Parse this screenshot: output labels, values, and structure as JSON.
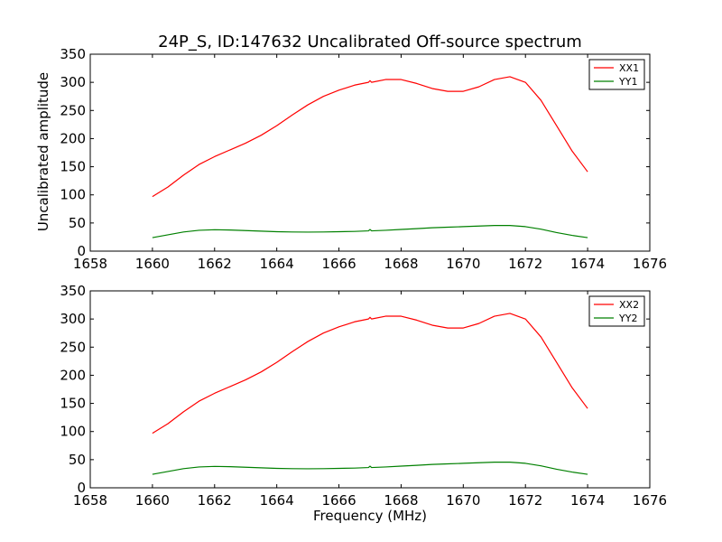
{
  "figure": {
    "title": "24P_S, ID:147632 Uncalibrated Off-source spectrum",
    "xlabel": "Frequency (MHz)",
    "ylabel": "Uncalibrated amplitude"
  },
  "chart_data": [
    {
      "type": "line",
      "xlim": [
        1658,
        1676
      ],
      "ylim": [
        0,
        350
      ],
      "xticks": [
        1658,
        1660,
        1662,
        1664,
        1666,
        1668,
        1670,
        1672,
        1674,
        1676
      ],
      "yticks": [
        0,
        50,
        100,
        150,
        200,
        250,
        300,
        350
      ],
      "legend_position": "top-right",
      "series": [
        {
          "name": "XX1",
          "color": "#ff0000",
          "x": [
            1660.0,
            1660.5,
            1661.0,
            1661.5,
            1662.0,
            1662.5,
            1663.0,
            1663.5,
            1664.0,
            1664.5,
            1665.0,
            1665.5,
            1666.0,
            1666.5,
            1666.95,
            1667.0,
            1667.05,
            1667.5,
            1668.0,
            1668.5,
            1669.0,
            1669.5,
            1670.0,
            1670.5,
            1671.0,
            1671.5,
            1672.0,
            1672.5,
            1673.0,
            1673.5,
            1674.0
          ],
          "values": [
            97,
            114,
            135,
            154,
            168,
            180,
            192,
            206,
            223,
            242,
            260,
            275,
            286,
            295,
            300,
            303,
            300,
            305,
            305,
            298,
            289,
            284,
            284,
            292,
            305,
            310,
            300,
            268,
            223,
            178,
            141
          ]
        },
        {
          "name": "YY1",
          "color": "#008000",
          "x": [
            1660.0,
            1660.5,
            1661.0,
            1661.5,
            1662.0,
            1662.5,
            1663.0,
            1663.5,
            1664.0,
            1664.5,
            1665.0,
            1665.5,
            1666.0,
            1666.5,
            1666.95,
            1667.0,
            1667.05,
            1667.5,
            1668.0,
            1668.5,
            1669.0,
            1669.5,
            1670.0,
            1670.5,
            1671.0,
            1671.5,
            1672.0,
            1672.5,
            1673.0,
            1673.5,
            1674.0
          ],
          "values": [
            24,
            29,
            34,
            37,
            38,
            37.5,
            36.5,
            35.5,
            34.5,
            34,
            33.8,
            34,
            34.5,
            35,
            36,
            38.5,
            36,
            37,
            38.5,
            40,
            41.5,
            42.5,
            43.5,
            44.5,
            45.5,
            45.5,
            43.5,
            39,
            33,
            28,
            24
          ]
        }
      ]
    },
    {
      "type": "line",
      "xlim": [
        1658,
        1676
      ],
      "ylim": [
        0,
        350
      ],
      "xticks": [
        1658,
        1660,
        1662,
        1664,
        1666,
        1668,
        1670,
        1672,
        1674,
        1676
      ],
      "yticks": [
        0,
        50,
        100,
        150,
        200,
        250,
        300,
        350
      ],
      "legend_position": "top-right",
      "series": [
        {
          "name": "XX2",
          "color": "#ff0000",
          "x": [
            1660.0,
            1660.5,
            1661.0,
            1661.5,
            1662.0,
            1662.5,
            1663.0,
            1663.5,
            1664.0,
            1664.5,
            1665.0,
            1665.5,
            1666.0,
            1666.5,
            1666.95,
            1667.0,
            1667.05,
            1667.5,
            1668.0,
            1668.5,
            1669.0,
            1669.5,
            1670.0,
            1670.5,
            1671.0,
            1671.5,
            1672.0,
            1672.5,
            1673.0,
            1673.5,
            1674.0
          ],
          "values": [
            97,
            114,
            135,
            154,
            168,
            180,
            192,
            206,
            223,
            242,
            260,
            275,
            286,
            295,
            300,
            303,
            300,
            305,
            305,
            298,
            289,
            284,
            284,
            292,
            305,
            310,
            300,
            268,
            223,
            178,
            141
          ]
        },
        {
          "name": "YY2",
          "color": "#008000",
          "x": [
            1660.0,
            1660.5,
            1661.0,
            1661.5,
            1662.0,
            1662.5,
            1663.0,
            1663.5,
            1664.0,
            1664.5,
            1665.0,
            1665.5,
            1666.0,
            1666.5,
            1666.95,
            1667.0,
            1667.05,
            1667.5,
            1668.0,
            1668.5,
            1669.0,
            1669.5,
            1670.0,
            1670.5,
            1671.0,
            1671.5,
            1672.0,
            1672.5,
            1673.0,
            1673.5,
            1674.0
          ],
          "values": [
            24,
            29,
            34,
            37,
            38,
            37.5,
            36.5,
            35.5,
            34.5,
            34,
            33.8,
            34,
            34.5,
            35,
            36,
            38.5,
            36,
            37,
            38.5,
            40,
            41.5,
            42.5,
            43.5,
            44.5,
            45.5,
            45.5,
            43.5,
            39,
            33,
            28,
            24
          ]
        }
      ]
    }
  ]
}
